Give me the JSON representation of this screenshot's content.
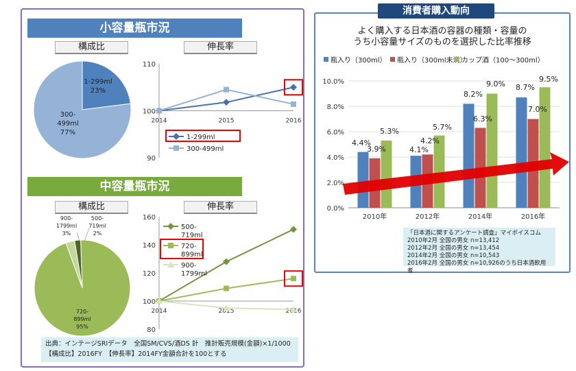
{
  "small": {
    "banner": "小容量瓶市況",
    "composition_label": "構成比",
    "growth_label": "伸長率",
    "pie": [
      {
        "label": "1-299ml",
        "pct": "23%",
        "value": 23,
        "color": "#4f81bd"
      },
      {
        "label": "300-\n499ml",
        "pct": "77%",
        "value": 77,
        "color": "#95b3d7"
      }
    ]
  },
  "medium": {
    "banner": "中容量瓶市況",
    "composition_label": "構成比",
    "growth_label": "伸長率",
    "pie": [
      {
        "label": "720-\n899ml",
        "pct": "95%",
        "value": 95,
        "color": "#9bbb59"
      },
      {
        "label": "900-\n1799ml",
        "pct": "3%",
        "value": 3,
        "color": "#c4d79b"
      },
      {
        "label": "500-\n719ml",
        "pct": "2%",
        "value": 2,
        "color": "#4f6228"
      }
    ]
  },
  "consumer": {
    "banner": "消費者購入動向",
    "title_line1": "よく購入する日本酒の容器の種類・容量の",
    "title_line2": "うち小容量サイズのものを選択した比率推移"
  },
  "source": {
    "line1": "出典：インテージSRIデータ　全国SM/CVS/酒DS 計　推計販売規模(金額)×1/1000",
    "line2": "【構成比】2016FY　【伸長率】2014FY金額合計を100とする"
  },
  "survey": {
    "lines": [
      "「日本酒に関するアンケート調査」マイボイスコム",
      "2010年2月  全国の男女  n=13,412",
      "2012年2月  全国の男女  n=13,454",
      "2014年2月  全国の男女  n=10,543",
      "2016年2月  全国の男女  n=10,926のうち日本酒飲用者"
    ]
  },
  "chart_data": [
    {
      "type": "pie",
      "title": "構成比",
      "categories": [
        "1-299ml",
        "300-499ml"
      ],
      "values": [
        23,
        77
      ]
    },
    {
      "type": "line",
      "title": "伸長率",
      "x": [
        "2014",
        "2015",
        "2016"
      ],
      "ylim": [
        90,
        110
      ],
      "yticks": [
        90,
        100,
        110
      ],
      "series": [
        {
          "name": "1-299ml",
          "values": [
            100,
            101.8,
            105
          ],
          "color": "#4a6fb0",
          "marker": "diamond",
          "highlight_last": true
        },
        {
          "name": "300-499ml",
          "values": [
            100,
            104.5,
            101.4
          ],
          "color": "#95b3d7",
          "marker": "square"
        }
      ],
      "legend_highlight": "1-299ml"
    },
    {
      "type": "pie",
      "title": "構成比",
      "categories": [
        "720-899ml",
        "900-1799ml",
        "500-719ml"
      ],
      "values": [
        95,
        3,
        2
      ]
    },
    {
      "type": "line",
      "title": "伸長率",
      "x": [
        "2014",
        "2015",
        "2016"
      ],
      "ylim": [
        80,
        160
      ],
      "yticks": [
        80,
        100,
        120,
        140,
        160
      ],
      "series": [
        {
          "name": "500-\n719ml",
          "values": [
            100,
            128,
            151
          ],
          "color": "#77933c",
          "marker": "diamond"
        },
        {
          "name": "720-\n899ml",
          "values": [
            100,
            109,
            116
          ],
          "color": "#9bbb59",
          "marker": "square",
          "highlight_last": true
        },
        {
          "name": "900-\n1799ml",
          "values": [
            100,
            95,
            94
          ],
          "color": "#d7e4bd",
          "marker": "triangle"
        }
      ],
      "legend_highlight": "720-\n899ml"
    },
    {
      "type": "bar",
      "categories": [
        "2010年",
        "2012年",
        "2014年",
        "2016年"
      ],
      "ylim": [
        0,
        10
      ],
      "yticks": [
        "0.0%",
        "2.0%",
        "4.0%",
        "6.0%",
        "8.0%",
        "10.0%"
      ],
      "series": [
        {
          "name": "瓶入り（300ml）",
          "values": [
            4.4,
            4.1,
            8.2,
            8.7
          ],
          "labels": [
            "4.4%",
            "4.1%",
            "8.2%",
            "8.7%"
          ],
          "color": "#4f81bd"
        },
        {
          "name": "瓶入り（300ml未満）",
          "values": [
            3.9,
            4.2,
            6.3,
            7.0
          ],
          "labels": [
            "3.9%",
            "4.2%",
            "6.3%",
            "7.0%"
          ],
          "color": "#c0504d"
        },
        {
          "name": "カップ酒（100～300ml）",
          "values": [
            5.3,
            5.7,
            9.0,
            9.5
          ],
          "labels": [
            "5.3%",
            "5.7%",
            "9.0%",
            "9.5%"
          ],
          "color": "#9bbb59"
        }
      ]
    }
  ]
}
